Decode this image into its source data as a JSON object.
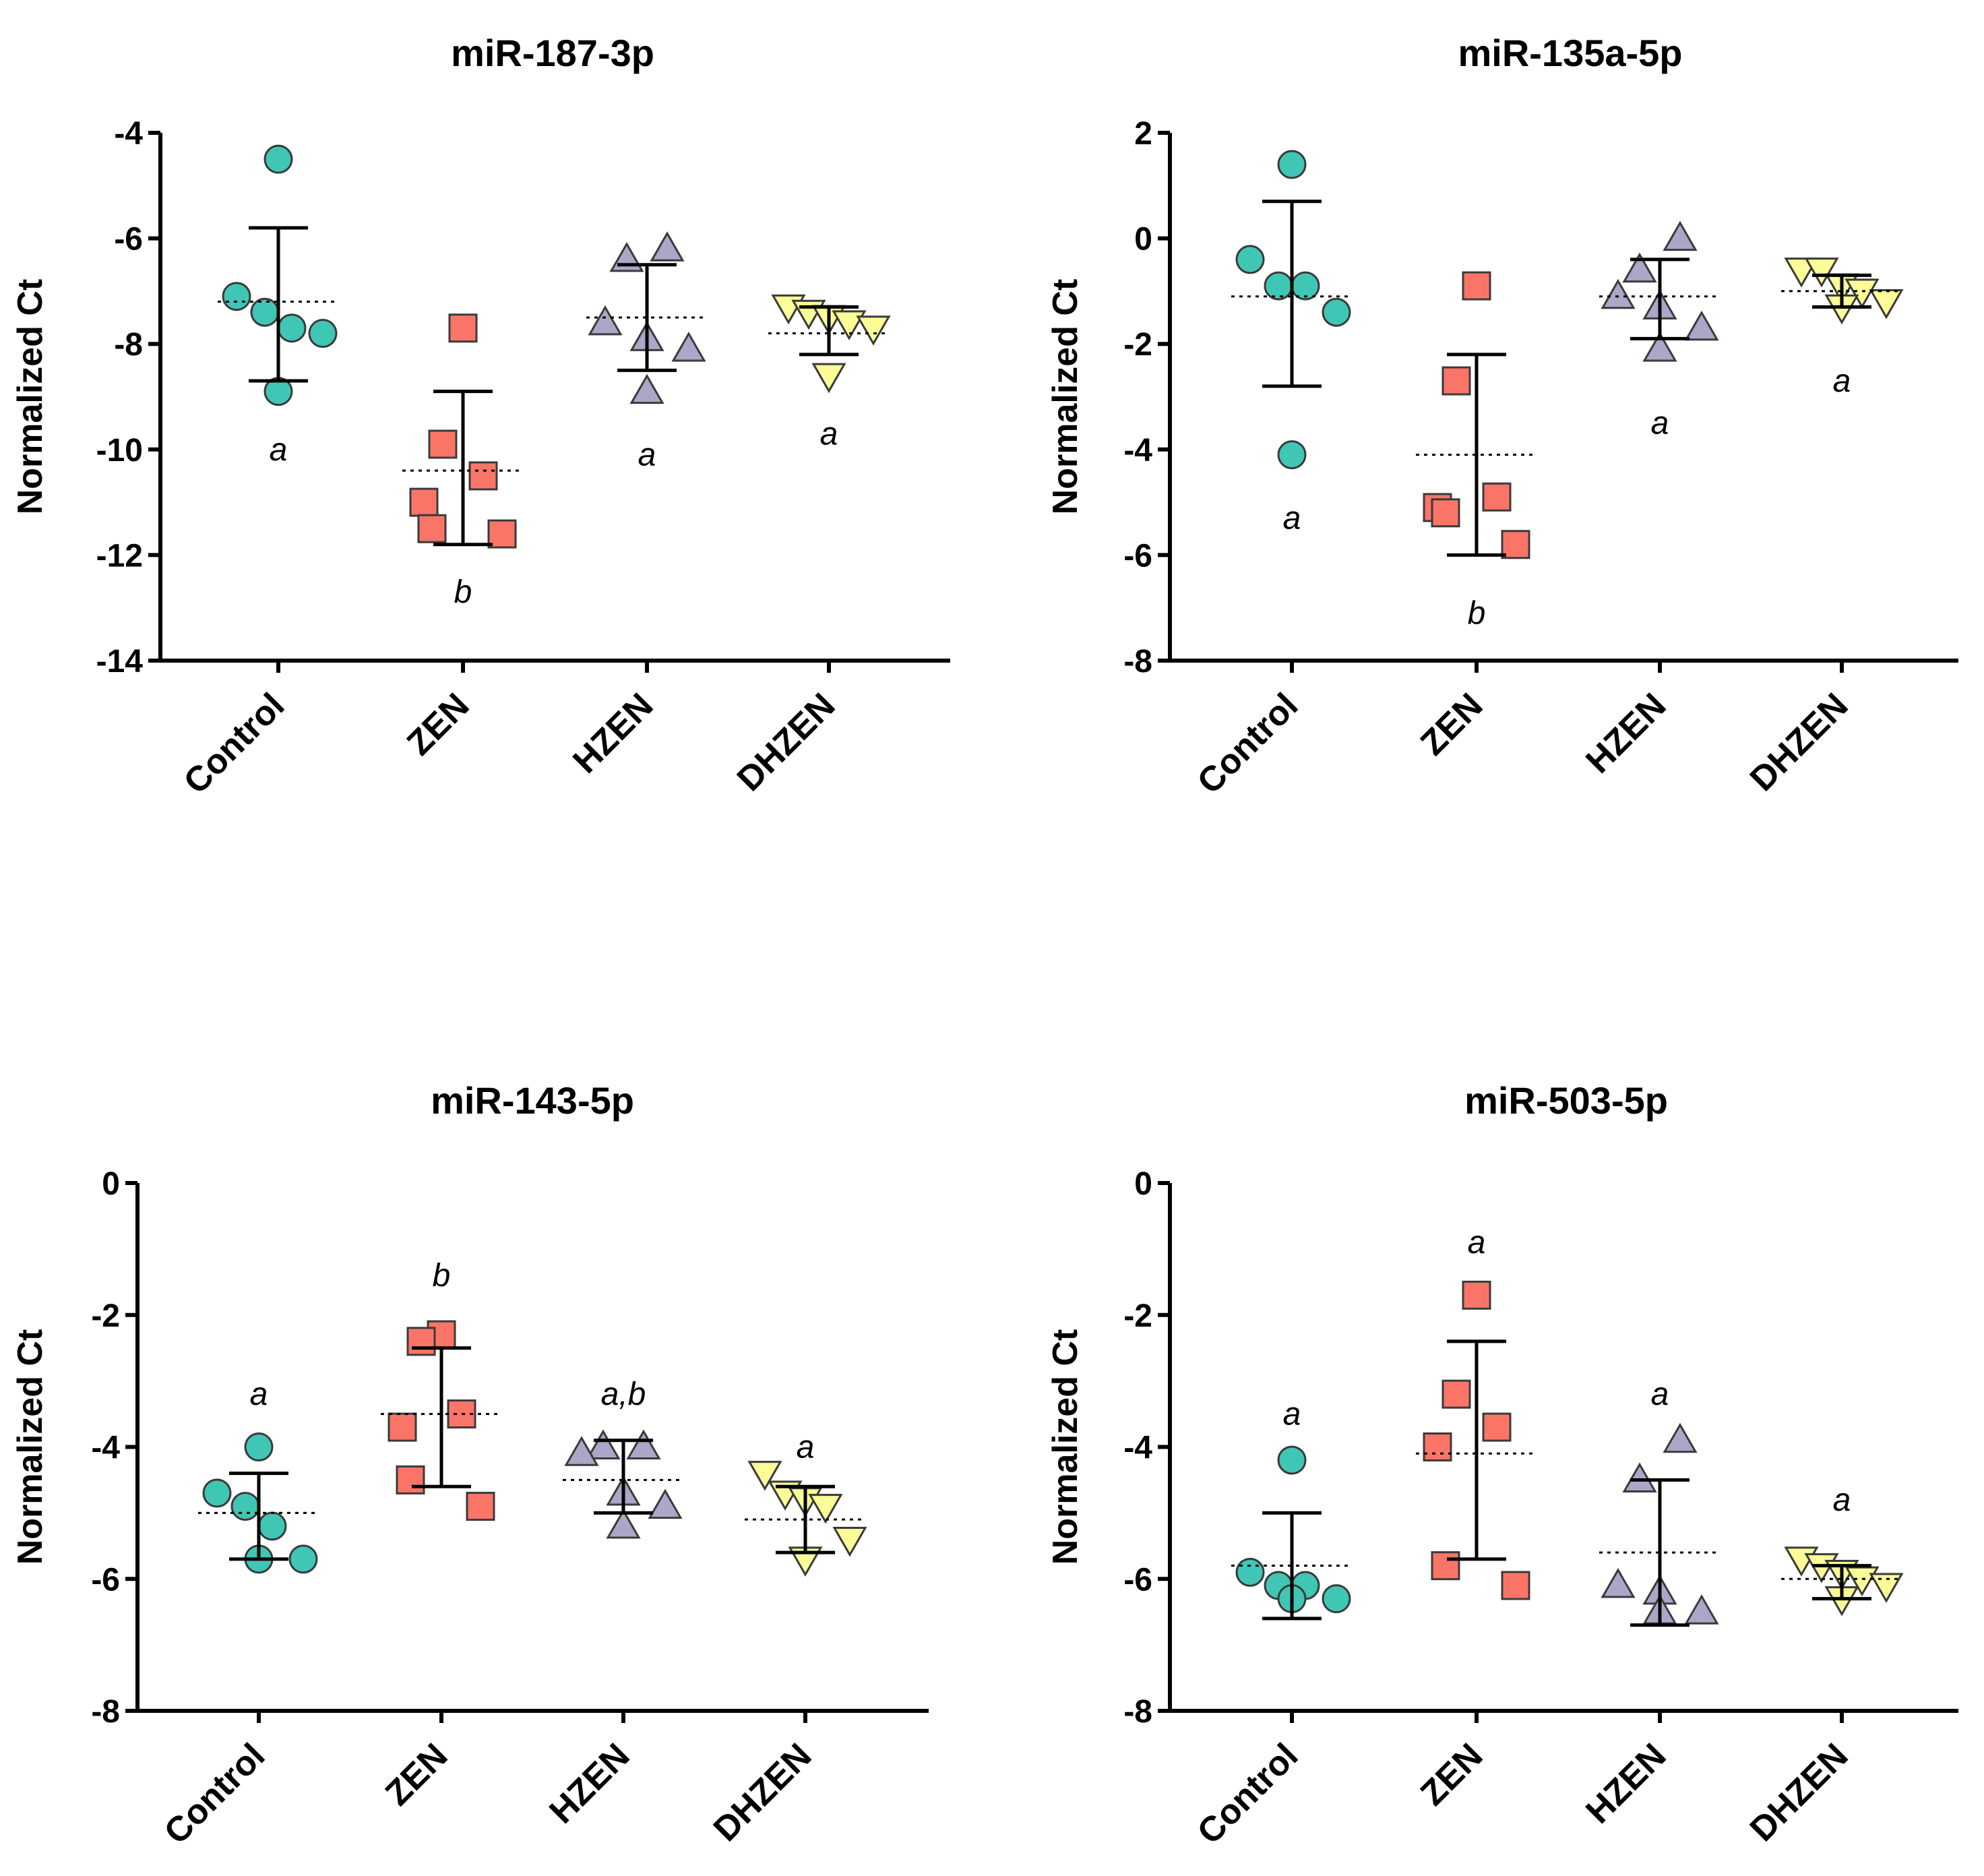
{
  "colors": {
    "Control": "#40c6b4",
    "ZEN": "#fa7568",
    "HZEN": "#aaa7c8",
    "DHZEN": "#fbfb98",
    "stroke": "#3a3a3a"
  },
  "chart_data": [
    {
      "type": "scatter",
      "title": "miR-187-3p",
      "ylabel": "Normalized Ct",
      "ylim": [
        -14,
        -4
      ],
      "yticks": [
        -4,
        -6,
        -8,
        -10,
        -12,
        -14
      ],
      "categories": [
        "Control",
        "ZEN",
        "HZEN",
        "DHZEN"
      ],
      "groups": [
        {
          "name": "Control",
          "marker": "circle",
          "points": [
            -4.5,
            -7.1,
            -7.4,
            -7.7,
            -7.8,
            -8.9
          ],
          "mean": -7.2,
          "sd_low": -8.7,
          "sd_high": -5.8,
          "letter": "a",
          "letter_y": -10.0
        },
        {
          "name": "ZEN",
          "marker": "square",
          "points": [
            -7.7,
            -9.9,
            -10.5,
            -11.0,
            -11.5,
            -11.6
          ],
          "mean": -10.4,
          "sd_low": -11.8,
          "sd_high": -8.9,
          "letter": "b",
          "letter_y": -12.7
        },
        {
          "name": "HZEN",
          "marker": "triangle-up",
          "points": [
            -6.2,
            -6.4,
            -7.6,
            -7.9,
            -8.1,
            -8.9
          ],
          "mean": -7.5,
          "sd_low": -8.5,
          "sd_high": -6.5,
          "letter": "a",
          "letter_y": -10.1
        },
        {
          "name": "DHZEN",
          "marker": "triangle-down",
          "points": [
            -7.3,
            -7.4,
            -7.5,
            -7.6,
            -7.7,
            -8.6
          ],
          "mean": -7.8,
          "sd_low": -8.2,
          "sd_high": -7.3,
          "letter": "a",
          "letter_y": -9.7
        }
      ]
    },
    {
      "type": "scatter",
      "title": "miR-135a-5p",
      "ylabel": "Normalized Ct",
      "ylim": [
        -8,
        2
      ],
      "yticks": [
        2,
        0,
        -2,
        -4,
        -6,
        -8
      ],
      "categories": [
        "Control",
        "ZEN",
        "HZEN",
        "DHZEN"
      ],
      "groups": [
        {
          "name": "Control",
          "marker": "circle",
          "points": [
            1.4,
            -0.4,
            -0.9,
            -0.9,
            -1.4,
            -4.1
          ],
          "mean": -1.1,
          "sd_low": -2.8,
          "sd_high": 0.7,
          "letter": "a",
          "letter_y": -5.3
        },
        {
          "name": "ZEN",
          "marker": "square",
          "points": [
            -0.9,
            -2.7,
            -4.9,
            -5.1,
            -5.2,
            -5.8
          ],
          "mean": -4.1,
          "sd_low": -6.0,
          "sd_high": -2.2,
          "letter": "b",
          "letter_y": -7.1
        },
        {
          "name": "HZEN",
          "marker": "triangle-up",
          "points": [
            0.0,
            -0.6,
            -1.1,
            -1.3,
            -1.7,
            -2.1
          ],
          "mean": -1.1,
          "sd_low": -1.9,
          "sd_high": -0.4,
          "letter": "a",
          "letter_y": -3.5
        },
        {
          "name": "DHZEN",
          "marker": "triangle-down",
          "points": [
            -0.6,
            -0.6,
            -0.9,
            -1.0,
            -1.2,
            -1.3
          ],
          "mean": -1.0,
          "sd_low": -1.3,
          "sd_high": -0.7,
          "letter": "a",
          "letter_y": -2.7
        }
      ]
    },
    {
      "type": "scatter",
      "title": "miR-143-5p",
      "ylabel": "Normalized Ct",
      "ylim": [
        -8,
        0
      ],
      "yticks": [
        0,
        -2,
        -4,
        -6,
        -8
      ],
      "categories": [
        "Control",
        "ZEN",
        "HZEN",
        "DHZEN"
      ],
      "groups": [
        {
          "name": "Control",
          "marker": "circle",
          "points": [
            -4.0,
            -4.7,
            -4.9,
            -5.2,
            -5.7,
            -5.7
          ],
          "mean": -5.0,
          "sd_low": -5.7,
          "sd_high": -4.4,
          "letter": "a",
          "letter_y": -3.2
        },
        {
          "name": "ZEN",
          "marker": "square",
          "points": [
            -2.3,
            -2.4,
            -3.5,
            -3.7,
            -4.5,
            -4.9
          ],
          "mean": -3.5,
          "sd_low": -4.6,
          "sd_high": -2.5,
          "letter": "b",
          "letter_y": -1.4
        },
        {
          "name": "HZEN",
          "marker": "triangle-up",
          "points": [
            -4.0,
            -4.0,
            -4.1,
            -4.7,
            -4.9,
            -5.2
          ],
          "mean": -4.5,
          "sd_low": -5.0,
          "sd_high": -3.9,
          "letter": "a,b",
          "letter_y": -3.2
        },
        {
          "name": "DHZEN",
          "marker": "triangle-down",
          "points": [
            -4.4,
            -4.7,
            -4.8,
            -4.9,
            -5.4,
            -5.7
          ],
          "mean": -5.1,
          "sd_low": -5.6,
          "sd_high": -4.6,
          "letter": "a",
          "letter_y": -4.0
        }
      ]
    },
    {
      "type": "scatter",
      "title": "miR-503-5p",
      "ylabel": "Normalized Ct",
      "ylim": [
        -8,
        0
      ],
      "yticks": [
        0,
        -2,
        -4,
        -6,
        -8
      ],
      "categories": [
        "Control",
        "ZEN",
        "HZEN",
        "DHZEN"
      ],
      "groups": [
        {
          "name": "Control",
          "marker": "circle",
          "points": [
            -4.2,
            -5.9,
            -6.1,
            -6.1,
            -6.3,
            -6.3
          ],
          "mean": -5.8,
          "sd_low": -6.6,
          "sd_high": -5.0,
          "letter": "a",
          "letter_y": -3.5
        },
        {
          "name": "ZEN",
          "marker": "square",
          "points": [
            -1.7,
            -3.2,
            -3.7,
            -4.0,
            -5.8,
            -6.1
          ],
          "mean": -4.1,
          "sd_low": -5.7,
          "sd_high": -2.4,
          "letter": "a",
          "letter_y": -0.9
        },
        {
          "name": "HZEN",
          "marker": "triangle-up",
          "points": [
            -3.9,
            -4.5,
            -6.1,
            -6.2,
            -6.5,
            -6.5
          ],
          "mean": -5.6,
          "sd_low": -6.7,
          "sd_high": -4.5,
          "letter": "a",
          "letter_y": -3.2
        },
        {
          "name": "DHZEN",
          "marker": "triangle-down",
          "points": [
            -5.7,
            -5.8,
            -5.9,
            -6.0,
            -6.1,
            -6.3
          ],
          "mean": -6.0,
          "sd_low": -6.3,
          "sd_high": -5.8,
          "letter": "a",
          "letter_y": -4.8
        }
      ]
    }
  ]
}
